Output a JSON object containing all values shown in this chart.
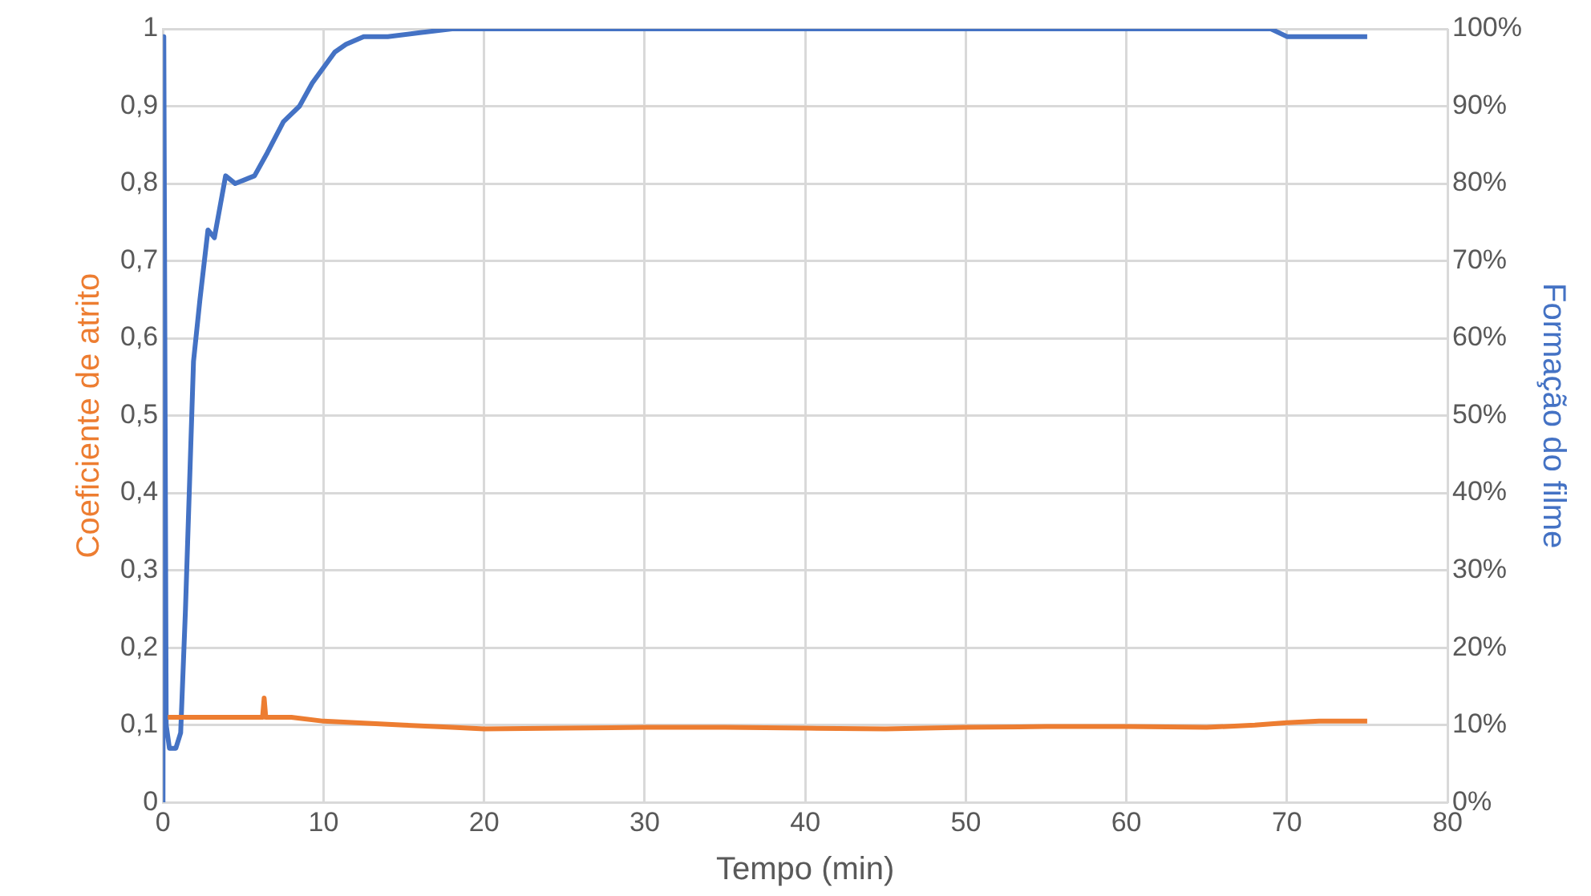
{
  "chart_data": {
    "type": "line",
    "xlabel": "Tempo (min)",
    "ylabel": "Coeficiente de atrito",
    "y2label": "Formação do filme",
    "xlim": [
      0,
      80
    ],
    "xticks": [
      0,
      10,
      20,
      30,
      40,
      50,
      60,
      70,
      80
    ],
    "ylim": [
      0,
      1
    ],
    "yticks": [
      {
        "value": 0,
        "label": "0"
      },
      {
        "value": 0.1,
        "label": "0,1"
      },
      {
        "value": 0.2,
        "label": "0,2"
      },
      {
        "value": 0.3,
        "label": "0,3"
      },
      {
        "value": 0.4,
        "label": "0,4"
      },
      {
        "value": 0.5,
        "label": "0,5"
      },
      {
        "value": 0.6,
        "label": "0,6"
      },
      {
        "value": 0.7,
        "label": "0,7"
      },
      {
        "value": 0.8,
        "label": "0,8"
      },
      {
        "value": 0.9,
        "label": "0,9"
      },
      {
        "value": 1,
        "label": "1"
      }
    ],
    "y2lim": [
      0,
      100
    ],
    "y2ticks": [
      {
        "value": 0,
        "label": "0%"
      },
      {
        "value": 10,
        "label": "10%"
      },
      {
        "value": 20,
        "label": "20%"
      },
      {
        "value": 30,
        "label": "30%"
      },
      {
        "value": 40,
        "label": "40%"
      },
      {
        "value": 50,
        "label": "50%"
      },
      {
        "value": 60,
        "label": "60%"
      },
      {
        "value": 70,
        "label": "70%"
      },
      {
        "value": 80,
        "label": "80%"
      },
      {
        "value": 90,
        "label": "90%"
      },
      {
        "value": 100,
        "label": "100%"
      }
    ],
    "grid": true,
    "legend": false,
    "marker": "none",
    "line_style": "solid",
    "series": [
      {
        "color": "#ed7d31",
        "x": [
          0.3,
          1,
          3,
          5,
          6.2,
          6.3,
          6.4,
          8,
          10,
          12,
          15,
          18,
          20,
          25,
          30,
          35,
          40,
          45,
          50,
          55,
          60,
          65,
          68,
          70,
          72,
          75
        ],
        "values": [
          0.11,
          0.11,
          0.11,
          0.11,
          0.11,
          0.135,
          0.11,
          0.11,
          0.105,
          0.103,
          0.1,
          0.097,
          0.095,
          0.096,
          0.097,
          0.097,
          0.096,
          0.095,
          0.097,
          0.098,
          0.098,
          0.097,
          0.1,
          0.103,
          0.105,
          0.105
        ]
      },
      {
        "color": "#4472c4",
        "axis": "y2",
        "x": [
          0,
          0.05,
          0.2,
          0.4,
          0.8,
          1.1,
          1.4,
          1.9,
          2.3,
          2.8,
          3.2,
          3.9,
          4.5,
          5.7,
          6.5,
          7.5,
          8.5,
          9.3,
          10.7,
          11.4,
          12.5,
          14,
          16,
          18,
          25,
          35,
          45,
          55,
          65,
          69,
          70,
          72,
          75
        ],
        "values": [
          0,
          99,
          10,
          7,
          7,
          9,
          25,
          57,
          65,
          74,
          73,
          81,
          80,
          81,
          84,
          88,
          90,
          93,
          97,
          98,
          99,
          99,
          99.5,
          100,
          100,
          100,
          100,
          100,
          100,
          100,
          99,
          99,
          99
        ]
      }
    ]
  }
}
